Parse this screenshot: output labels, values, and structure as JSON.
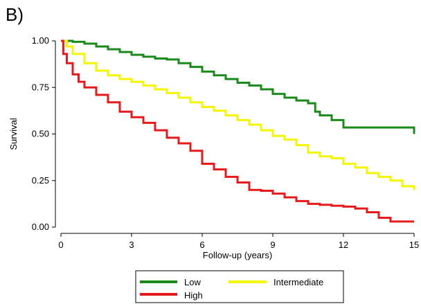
{
  "panel_label": "B)",
  "chart_data": {
    "type": "line",
    "title": "",
    "xlabel": "Follow-up (years)",
    "ylabel": "Survival",
    "xlim": [
      0,
      15
    ],
    "ylim": [
      0,
      1
    ],
    "x_ticks": [
      0,
      3,
      6,
      9,
      12,
      15
    ],
    "x_tick_labels": [
      "0",
      "3",
      "6",
      "9",
      "12",
      "15"
    ],
    "y_ticks": [
      0,
      0.25,
      0.5,
      0.75,
      1
    ],
    "y_tick_labels": [
      "0.00",
      "0.25",
      "0.50",
      "0.75",
      "1.00"
    ],
    "grid": false,
    "legend_position": "bottom",
    "series": [
      {
        "name": "Low",
        "color": "#1a8a1a",
        "points": [
          [
            0,
            1.0
          ],
          [
            0.5,
            0.995
          ],
          [
            1,
            0.985
          ],
          [
            1.5,
            0.97
          ],
          [
            2,
            0.955
          ],
          [
            2.5,
            0.94
          ],
          [
            3,
            0.925
          ],
          [
            3.5,
            0.915
          ],
          [
            4,
            0.905
          ],
          [
            4.5,
            0.9
          ],
          [
            5,
            0.88
          ],
          [
            5.5,
            0.86
          ],
          [
            6,
            0.835
          ],
          [
            6.5,
            0.815
          ],
          [
            7,
            0.795
          ],
          [
            7.5,
            0.775
          ],
          [
            8,
            0.76
          ],
          [
            8.5,
            0.74
          ],
          [
            9,
            0.715
          ],
          [
            9.5,
            0.695
          ],
          [
            10,
            0.68
          ],
          [
            10.5,
            0.665
          ],
          [
            10.8,
            0.62
          ],
          [
            11,
            0.6
          ],
          [
            11.5,
            0.575
          ],
          [
            12,
            0.535
          ],
          [
            13,
            0.535
          ],
          [
            14,
            0.535
          ],
          [
            14.8,
            0.535
          ],
          [
            15,
            0.5
          ]
        ]
      },
      {
        "name": "Intermediate",
        "color": "#f5f500",
        "points": [
          [
            0,
            1.0
          ],
          [
            0.25,
            0.97
          ],
          [
            0.5,
            0.93
          ],
          [
            1,
            0.88
          ],
          [
            1.5,
            0.84
          ],
          [
            2,
            0.815
          ],
          [
            2.5,
            0.795
          ],
          [
            3,
            0.78
          ],
          [
            3.5,
            0.76
          ],
          [
            4,
            0.74
          ],
          [
            4.5,
            0.72
          ],
          [
            5,
            0.695
          ],
          [
            5.5,
            0.67
          ],
          [
            6,
            0.645
          ],
          [
            6.5,
            0.625
          ],
          [
            7,
            0.6
          ],
          [
            7.5,
            0.575
          ],
          [
            8,
            0.55
          ],
          [
            8.5,
            0.52
          ],
          [
            9,
            0.49
          ],
          [
            9.5,
            0.47
          ],
          [
            10,
            0.44
          ],
          [
            10.5,
            0.4
          ],
          [
            11,
            0.38
          ],
          [
            11.5,
            0.37
          ],
          [
            12,
            0.34
          ],
          [
            12.5,
            0.32
          ],
          [
            13,
            0.29
          ],
          [
            13.5,
            0.27
          ],
          [
            14,
            0.25
          ],
          [
            14.5,
            0.22
          ],
          [
            15,
            0.2
          ]
        ]
      },
      {
        "name": "High",
        "color": "#e61a1a",
        "points": [
          [
            0,
            1.0
          ],
          [
            0.1,
            0.93
          ],
          [
            0.25,
            0.88
          ],
          [
            0.5,
            0.82
          ],
          [
            0.75,
            0.78
          ],
          [
            1,
            0.75
          ],
          [
            1.5,
            0.71
          ],
          [
            2,
            0.67
          ],
          [
            2.5,
            0.62
          ],
          [
            3,
            0.59
          ],
          [
            3.5,
            0.56
          ],
          [
            4,
            0.52
          ],
          [
            4.5,
            0.48
          ],
          [
            5,
            0.45
          ],
          [
            5.5,
            0.41
          ],
          [
            6,
            0.34
          ],
          [
            6.5,
            0.31
          ],
          [
            7,
            0.27
          ],
          [
            7.5,
            0.24
          ],
          [
            8,
            0.2
          ],
          [
            8.5,
            0.195
          ],
          [
            9,
            0.18
          ],
          [
            9.5,
            0.16
          ],
          [
            10,
            0.14
          ],
          [
            10.5,
            0.125
          ],
          [
            11,
            0.12
          ],
          [
            11.5,
            0.115
          ],
          [
            12,
            0.11
          ],
          [
            12.5,
            0.1
          ],
          [
            13,
            0.08
          ],
          [
            13.5,
            0.05
          ],
          [
            14,
            0.03
          ],
          [
            15,
            0.03
          ]
        ]
      }
    ]
  }
}
